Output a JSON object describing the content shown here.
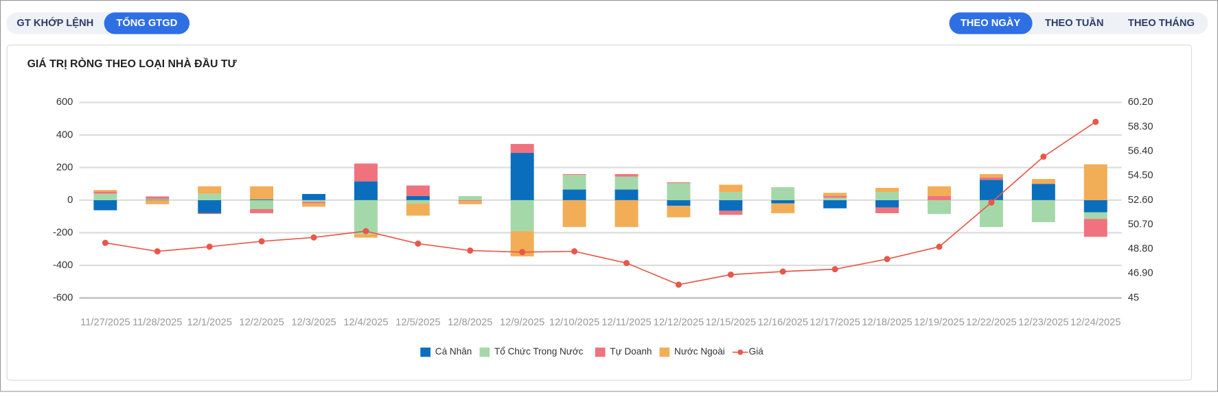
{
  "tabs": {
    "value_type": [
      {
        "label": "GT KHỚP LỆNH"
      },
      {
        "label": "TỔNG GTGD",
        "active": true
      }
    ],
    "period": [
      {
        "label": "THEO NGÀY",
        "active": true
      },
      {
        "label": "THEO TUẦN"
      },
      {
        "label": "THEO THÁNG"
      }
    ]
  },
  "chart_data": {
    "type": "bar",
    "stacked": true,
    "title": "GIÁ TRỊ RÒNG THEO LOẠI NHÀ ĐẦU TƯ",
    "categories": [
      "11/27/2025",
      "11/28/2025",
      "12/1/2025",
      "12/2/2025",
      "12/3/2025",
      "12/4/2025",
      "12/5/2025",
      "12/8/2025",
      "12/9/2025",
      "12/10/2025",
      "12/11/2025",
      "12/12/2025",
      "12/15/2025",
      "12/16/2025",
      "12/17/2025",
      "12/18/2025",
      "12/19/2025",
      "12/22/2025",
      "12/23/2025",
      "12/24/2025"
    ],
    "series": [
      {
        "name": "Cá Nhân",
        "color": "#0a6ebd",
        "values": [
          -62,
          3,
          -80,
          5,
          38,
          115,
          25,
          0,
          290,
          65,
          65,
          -35,
          -65,
          -20,
          -50,
          -45,
          0,
          125,
          100,
          -75
        ]
      },
      {
        "name": "Tổ Chức Trong Nước",
        "color": "#a5d8a9",
        "values": [
          40,
          5,
          40,
          -55,
          -10,
          -210,
          -20,
          25,
          -190,
          90,
          80,
          105,
          50,
          80,
          15,
          50,
          -85,
          -165,
          -135,
          -40
        ]
      },
      {
        "name": "Tự Doanh",
        "color": "#f0727e",
        "values": [
          12,
          15,
          -5,
          -25,
          -10,
          110,
          65,
          -5,
          55,
          5,
          15,
          5,
          -25,
          0,
          10,
          -35,
          25,
          15,
          0,
          -110
        ]
      },
      {
        "name": "Nước Ngoài",
        "color": "#f2ad57",
        "values": [
          10,
          -25,
          45,
          80,
          -20,
          -20,
          -75,
          -20,
          -155,
          -165,
          -165,
          -70,
          45,
          -60,
          20,
          25,
          60,
          20,
          30,
          220
        ]
      },
      {
        "name": "Giá",
        "color": "#e8584a",
        "type": "line",
        "axis": "y2",
        "values": [
          49.28,
          48.62,
          48.98,
          49.4,
          49.7,
          50.19,
          49.22,
          48.68,
          48.56,
          48.62,
          47.71,
          46.03,
          46.81,
          47.05,
          47.23,
          48.02,
          48.98,
          52.42,
          55.98,
          58.69
        ]
      }
    ],
    "ylim": [
      -600,
      600
    ],
    "yticks": [
      600,
      400,
      200,
      0,
      -200,
      -400,
      -600
    ],
    "y2lim": [
      45,
      60.2
    ],
    "y2ticks": [
      {
        "value": 60.2,
        "label": "60.20"
      },
      {
        "value": 58.3,
        "label": "58.30"
      },
      {
        "value": 56.4,
        "label": "56.40"
      },
      {
        "value": 54.5,
        "label": "54.50"
      },
      {
        "value": 52.6,
        "label": "52.60"
      },
      {
        "value": 50.7,
        "label": "50.70"
      },
      {
        "value": 48.8,
        "label": "48.80"
      },
      {
        "value": 46.9,
        "label": "46.90"
      },
      45
    ],
    "grid": true,
    "legend": "bottom"
  }
}
